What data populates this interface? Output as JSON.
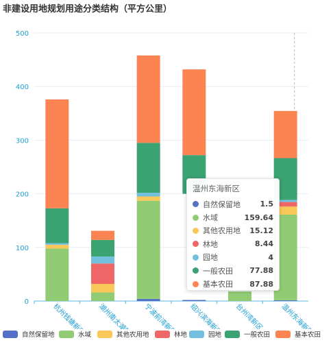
{
  "title": "非建设用地规划用途分类结构（平方公里）",
  "chart_data": {
    "type": "bar",
    "stacked": true,
    "categories": [
      "杭州钱塘新区",
      "湖州南太湖新区",
      "宁波前湾新区",
      "绍兴滨海新区",
      "台州湾新区",
      "温州东海新区"
    ],
    "series": [
      {
        "name": "自然保留地",
        "color": "#5470c6",
        "values": [
          0,
          0,
          4,
          2,
          0,
          1.5
        ]
      },
      {
        "name": "水域",
        "color": "#91cc75",
        "values": [
          98,
          16,
          183,
          0,
          0,
          159.64
        ]
      },
      {
        "name": "其他农用地",
        "color": "#fac858",
        "values": [
          7,
          16,
          8,
          0,
          0,
          15.12
        ]
      },
      {
        "name": "林地",
        "color": "#ee6666",
        "values": [
          0,
          38,
          0,
          0,
          0,
          8.44
        ]
      },
      {
        "name": "园地",
        "color": "#73c0de",
        "values": [
          3,
          13,
          7,
          0,
          0,
          4
        ]
      },
      {
        "name": "一般农田",
        "color": "#3ba272",
        "values": [
          65,
          31,
          93,
          0,
          0,
          77.88
        ]
      },
      {
        "name": "基本农田",
        "color": "#fc8452",
        "values": [
          203,
          17,
          163,
          0,
          0,
          87.88
        ]
      }
    ],
    "partial_totals": {
      "绍兴滨海新区_top": 432,
      "绍兴滨海新区_mid": 272
    },
    "ylim": [
      0,
      500
    ],
    "yticks": [
      0,
      100,
      200,
      300,
      400,
      500
    ],
    "grid": true,
    "legend": "bottom"
  },
  "tooltip": {
    "title": "温州东海新区",
    "rows": [
      {
        "name": "自然保留地",
        "value": "1.5",
        "color": "#5470c6"
      },
      {
        "name": "水域",
        "value": "159.64",
        "color": "#91cc75"
      },
      {
        "name": "其他农用地",
        "value": "15.12",
        "color": "#fac858"
      },
      {
        "name": "林地",
        "value": "8.44",
        "color": "#ee6666"
      },
      {
        "name": "园地",
        "value": "4",
        "color": "#73c0de"
      },
      {
        "name": "一般农田",
        "value": "77.88",
        "color": "#3ba272"
      },
      {
        "name": "基本农田",
        "value": "87.88",
        "color": "#fc8452"
      }
    ]
  },
  "legend": [
    {
      "name": "自然保留地",
      "color": "#5470c6"
    },
    {
      "name": "水域",
      "color": "#91cc75"
    },
    {
      "name": "其他农用地",
      "color": "#fac858"
    },
    {
      "name": "林地",
      "color": "#ee6666"
    },
    {
      "name": "园地",
      "color": "#73c0de"
    },
    {
      "name": "一般农田",
      "color": "#3ba272"
    },
    {
      "name": "基本农田",
      "color": "#fc8452"
    }
  ]
}
